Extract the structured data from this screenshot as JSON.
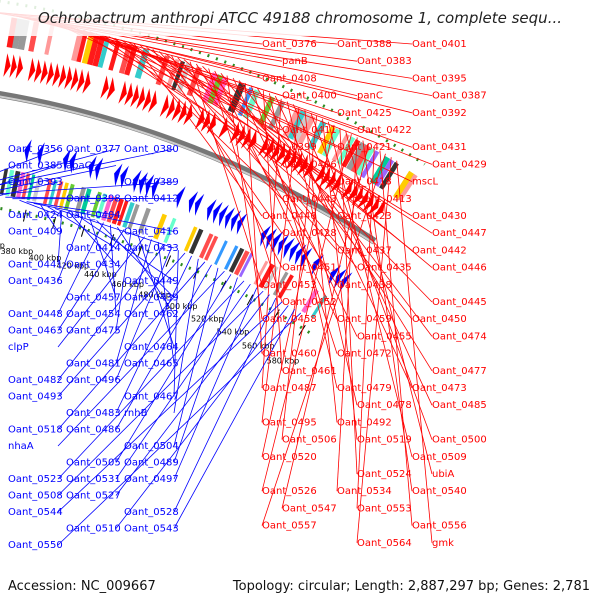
{
  "title": "Ochrobactrum anthropi ATCC 49188 chromosome 1, complete sequ...",
  "footer": {
    "accession": "Accession: NC_009667",
    "summary": "Topology: circular; Length: 2,887,297 bp; Genes: 2,781"
  },
  "colors": {
    "forward": "#ff0000",
    "reverse": "#0000ff",
    "backbone": "#999999",
    "gc_dots": "#2e8b20"
  },
  "kbp_ticks": [
    "340 kbp",
    "360 kbp",
    "380 kbp",
    "400 kbp",
    "420 kbp",
    "440 kbp",
    "460 kbp",
    "480 kbp",
    "500 kbp",
    "520 kbp",
    "540 kbp",
    "560 kbp",
    "580 kbp"
  ],
  "forward_genes": [
    "Oant_0376",
    "Oant_0388",
    "Oant_0401",
    "panB",
    "Oant_0383",
    "Oant_0395",
    "Oant_0408",
    "panC",
    "Oant_0387",
    "Oant_0400",
    "Oant_0425",
    "Oant_0392",
    "Oant_0411",
    "Oant_0422",
    "Oant_0431",
    "Oant_0399",
    "Oant_0421",
    "Oant_0429",
    "Oant_0406",
    "Oant_0418",
    "mscL",
    "Oant_0443",
    "Oant_0413",
    "Oant_0430",
    "Oant_0440",
    "Oant_0423",
    "Oant_0447",
    "Oant_0428",
    "Oant_0437",
    "Oant_0442",
    "Oant_0451",
    "Oant_0435",
    "Oant_0446",
    "Oant_0453",
    "Oant_0438",
    "Oant_0445",
    "Oant_0452",
    "Oant_0459",
    "Oant_0450",
    "Oant_0458",
    "Oant_0455",
    "Oant_0474",
    "Oant_0460",
    "Oant_0472",
    "Oant_0477",
    "Oant_0461",
    "Oant_0479",
    "Oant_0473",
    "Oant_0487",
    "Oant_0478",
    "Oant_0485",
    "Oant_0495",
    "Oant_0492",
    "Oant_0500",
    "Oant_0506",
    "Oant_0519",
    "Oant_0509",
    "Oant_0520",
    "Oant_0524",
    "ubiA",
    "Oant_0526",
    "Oant_0534",
    "Oant_0540",
    "Oant_0547",
    "Oant_0553",
    "Oant_0556",
    "Oant_0557",
    "Oant_0564",
    "gmk"
  ],
  "reverse_genes": [
    "Oant_0356",
    "Oant_0377",
    "Oant_0380",
    "Oant_0385",
    "apaG",
    "Oant_0389",
    "Oant_0393",
    "Oant_0398",
    "Oant_0412",
    "Oant_0424",
    "Oant_0404",
    "Oant_0416",
    "Oant_0409",
    "Oant_0414",
    "Oant_0433",
    "Oant_0441",
    "Oant_0434",
    "Oant_0449",
    "Oant_0436",
    "Oant_0457",
    "Oant_0439",
    "Oant_0448",
    "Oant_0454",
    "Oant_0462",
    "Oant_0463",
    "Oant_0475",
    "Oant_0464",
    "clpP",
    "Oant_0481",
    "Oant_0465",
    "Oant_0482",
    "Oant_0496",
    "Oant_0467",
    "Oant_0493",
    "Oant_0483",
    "rnhB",
    "Oant_0518",
    "Oant_0486",
    "Oant_0504",
    "nhaA",
    "Oant_0505",
    "Oant_0489",
    "Oant_0523",
    "Oant_0531",
    "Oant_0497",
    "Oant_0508",
    "Oant_0527",
    "Oant_0528",
    "Oant_0544",
    "Oant_0510",
    "Oant_0543",
    "Oant_0550"
  ]
}
